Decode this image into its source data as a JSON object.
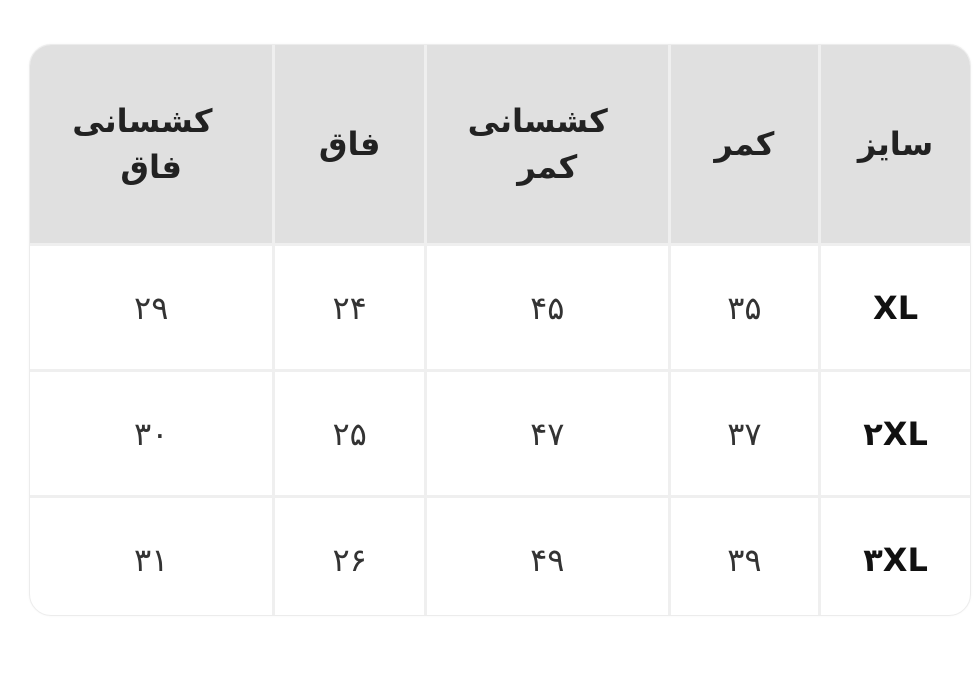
{
  "table": {
    "headers": [
      "سایز",
      "کمر",
      "کشسانی کمر",
      "فاق",
      "کشسانی فاق"
    ],
    "rows": [
      [
        "XL",
        "۳۵",
        "۴۵",
        "۲۴",
        "۲۹"
      ],
      [
        "۲XL",
        "۳۷",
        "۴۷",
        "۲۵",
        "۳۰"
      ],
      [
        "۳XL",
        "۳۹",
        "۴۹",
        "۲۶",
        "۳۱"
      ]
    ]
  },
  "colors": {
    "header_bg": "#e0e0e0",
    "border": "#efefef"
  }
}
